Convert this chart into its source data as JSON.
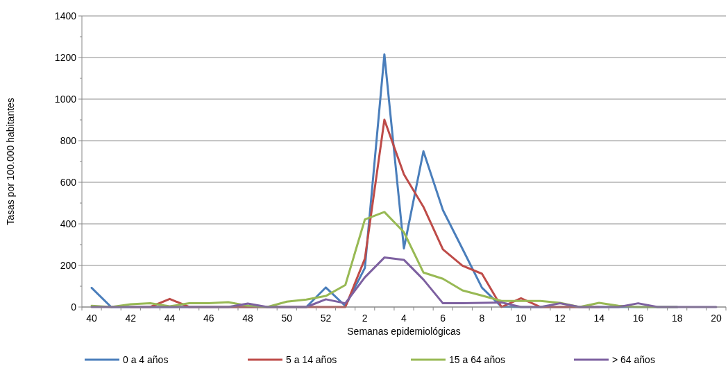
{
  "chart_data": {
    "type": "line",
    "xlabel": "Semanas epidemiológicas",
    "ylabel": "Tasas por 100.000 habitantes",
    "categories": [
      "40",
      null,
      "42",
      null,
      "44",
      null,
      "46",
      null,
      "48",
      null,
      "50",
      null,
      "52",
      null,
      "2",
      null,
      "4",
      null,
      "6",
      null,
      "8",
      null,
      "10",
      null,
      "12",
      null,
      "14",
      null,
      "16",
      null,
      "18",
      null,
      "20"
    ],
    "series": [
      {
        "name": "0 a 4 años",
        "color": "#4a7ebb",
        "values": [
          92,
          0,
          0,
          0,
          0,
          0,
          0,
          0,
          0,
          0,
          0,
          0,
          94,
          5,
          188,
          1215,
          282,
          749,
          466,
          280,
          93,
          2,
          0,
          0,
          0,
          0,
          0,
          0,
          0,
          0,
          0,
          null,
          null
        ]
      },
      {
        "name": "5 a 14 años",
        "color": "#be4b48",
        "values": [
          null,
          null,
          0,
          0,
          39,
          0,
          0,
          0,
          0,
          0,
          0,
          0,
          0,
          0,
          232,
          901,
          638,
          482,
          277,
          199,
          160,
          0,
          42,
          0,
          0,
          0,
          0,
          null,
          null,
          null,
          null,
          null,
          null
        ]
      },
      {
        "name": "15 a 64 años",
        "color": "#98b954",
        "values": [
          6,
          0,
          13,
          18,
          3,
          18,
          18,
          23,
          6,
          0,
          26,
          36,
          53,
          106,
          421,
          457,
          360,
          166,
          136,
          80,
          55,
          29,
          29,
          29,
          20,
          0,
          20,
          6,
          0,
          0,
          0,
          null,
          null
        ]
      },
      {
        "name": "> 64 años",
        "color": "#7d60a0",
        "values": [
          0,
          0,
          0,
          0,
          0,
          0,
          0,
          0,
          17,
          0,
          0,
          0,
          37,
          18,
          143,
          238,
          227,
          132,
          18,
          18,
          20,
          22,
          0,
          0,
          18,
          0,
          0,
          0,
          18,
          0,
          0,
          0,
          0
        ]
      }
    ],
    "ylim": [
      0,
      1400
    ],
    "yticks": [
      0,
      200,
      400,
      600,
      800,
      1000,
      1200,
      1400
    ],
    "grid": "y",
    "legend": "bottom",
    "marker": "none",
    "line_style": "solid"
  }
}
